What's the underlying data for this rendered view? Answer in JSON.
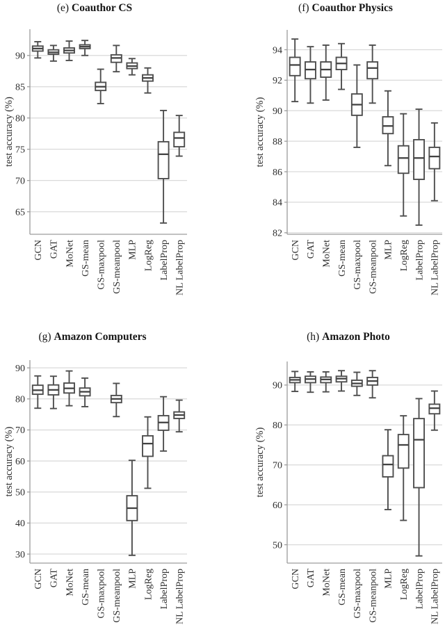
{
  "style": {
    "background": "#ffffff",
    "box_stroke": "#4e4e4e",
    "median_color": "#424242",
    "box_fill": "#ffffff",
    "grid_color": "#d9d9d9",
    "spine_color": "#9c9c9c",
    "text_color": "#2e2e2e",
    "title_color": "#161616"
  },
  "chart_data": [
    {
      "id": "e",
      "type": "boxplot",
      "title": "(e) Coauthor CS",
      "title_prefix": "(e)",
      "title_name": "Coauthor CS",
      "xlabel": "",
      "ylabel": "test accuracy (%)",
      "grid": true,
      "legend": false,
      "ylim": [
        61.4,
        94.2
      ],
      "yticks": [
        65,
        70,
        75,
        80,
        85,
        90
      ],
      "categories": [
        "GCN",
        "GAT",
        "MoNet",
        "GS-mean",
        "GS-maxpool",
        "GS-meanpool",
        "MLP",
        "LogReg",
        "LabelProp",
        "NL LabelProp"
      ],
      "boxes": [
        {
          "label": "GCN",
          "low": 89.6,
          "q1": 90.7,
          "median": 91.1,
          "q3": 91.5,
          "high": 92.2
        },
        {
          "label": "GAT",
          "low": 89.1,
          "q1": 90.2,
          "median": 90.5,
          "q3": 90.9,
          "high": 91.6
        },
        {
          "label": "MoNet",
          "low": 89.2,
          "q1": 90.4,
          "median": 90.8,
          "q3": 91.2,
          "high": 92.3
        },
        {
          "label": "GS-mean",
          "low": 90.0,
          "q1": 91.1,
          "median": 91.4,
          "q3": 91.7,
          "high": 92.4
        },
        {
          "label": "GS-maxpool",
          "low": 82.3,
          "q1": 84.4,
          "median": 85.0,
          "q3": 85.7,
          "high": 87.8
        },
        {
          "label": "GS-meanpool",
          "low": 87.4,
          "q1": 88.9,
          "median": 89.6,
          "q3": 90.1,
          "high": 91.6
        },
        {
          "label": "MLP",
          "low": 86.9,
          "q1": 87.9,
          "median": 88.3,
          "q3": 88.8,
          "high": 89.5
        },
        {
          "label": "LogReg",
          "low": 84.0,
          "q1": 85.9,
          "median": 86.4,
          "q3": 86.9,
          "high": 88.0
        },
        {
          "label": "LabelProp",
          "low": 63.2,
          "q1": 70.3,
          "median": 74.2,
          "q3": 76.2,
          "high": 81.2
        },
        {
          "label": "NL LabelProp",
          "low": 73.9,
          "q1": 75.4,
          "median": 76.8,
          "q3": 77.7,
          "high": 80.4
        }
      ]
    },
    {
      "id": "f",
      "type": "boxplot",
      "title": "(f) Coauthor Physics",
      "title_prefix": "(f)",
      "title_name": "Coauthor Physics",
      "xlabel": "",
      "ylabel": "test accuracy (%)",
      "grid": true,
      "legend": false,
      "ylim": [
        81.9,
        95.3
      ],
      "yticks": [
        82,
        84,
        86,
        88,
        90,
        92,
        94
      ],
      "categories": [
        "GCN",
        "GAT",
        "MoNet",
        "GS-mean",
        "GS-maxpool",
        "GS-meanpool",
        "MLP",
        "LogReg",
        "LabelProp",
        "NL LabelProp"
      ],
      "boxes": [
        {
          "label": "GCN",
          "low": 90.6,
          "q1": 92.3,
          "median": 93.0,
          "q3": 93.5,
          "high": 94.7
        },
        {
          "label": "GAT",
          "low": 90.5,
          "q1": 92.1,
          "median": 92.7,
          "q3": 93.2,
          "high": 94.2
        },
        {
          "label": "MoNet",
          "low": 90.7,
          "q1": 92.2,
          "median": 92.7,
          "q3": 93.2,
          "high": 94.3
        },
        {
          "label": "GS-mean",
          "low": 91.4,
          "q1": 92.7,
          "median": 93.1,
          "q3": 93.5,
          "high": 94.4
        },
        {
          "label": "GS-maxpool",
          "low": 87.6,
          "q1": 89.7,
          "median": 90.4,
          "q3": 91.1,
          "high": 93.0
        },
        {
          "label": "GS-meanpool",
          "low": 90.5,
          "q1": 92.1,
          "median": 92.8,
          "q3": 93.2,
          "high": 94.3
        },
        {
          "label": "MLP",
          "low": 86.4,
          "q1": 88.5,
          "median": 89.0,
          "q3": 89.6,
          "high": 91.3
        },
        {
          "label": "LogReg",
          "low": 83.1,
          "q1": 85.9,
          "median": 86.9,
          "q3": 87.7,
          "high": 89.8
        },
        {
          "label": "LabelProp",
          "low": 82.5,
          "q1": 85.5,
          "median": 86.9,
          "q3": 88.1,
          "high": 90.1
        },
        {
          "label": "NL LabelProp",
          "low": 84.1,
          "q1": 86.2,
          "median": 87.0,
          "q3": 87.6,
          "high": 89.2
        }
      ]
    },
    {
      "id": "g",
      "type": "boxplot",
      "title": "(g) Amazon Computers",
      "title_prefix": "(g)",
      "title_name": "Amazon Computers",
      "xlabel": "",
      "ylabel": "test accuracy (%)",
      "grid": true,
      "legend": false,
      "ylim": [
        27.1,
        92.5
      ],
      "yticks": [
        30,
        40,
        50,
        60,
        70,
        80,
        90
      ],
      "categories": [
        "GCN",
        "GAT",
        "MoNet",
        "GS-mean",
        "GS-maxpool",
        "GS-meanpool",
        "MLP",
        "LogReg",
        "LabelProp",
        "NL LabelProp"
      ],
      "boxes": [
        {
          "label": "GCN",
          "low": 77.0,
          "q1": 81.5,
          "median": 82.8,
          "q3": 84.4,
          "high": 87.4
        },
        {
          "label": "GAT",
          "low": 76.9,
          "q1": 81.3,
          "median": 82.9,
          "q3": 84.5,
          "high": 87.3
        },
        {
          "label": "MoNet",
          "low": 77.8,
          "q1": 81.9,
          "median": 83.4,
          "q3": 85.1,
          "high": 89.0
        },
        {
          "label": "GS-mean",
          "low": 77.5,
          "q1": 81.0,
          "median": 82.3,
          "q3": 83.5,
          "high": 86.7
        },
        null,
        {
          "label": "GS-meanpool",
          "low": 74.3,
          "q1": 78.8,
          "median": 80.0,
          "q3": 81.1,
          "high": 85.0
        },
        {
          "label": "MLP",
          "low": 29.6,
          "q1": 40.8,
          "median": 44.8,
          "q3": 48.8,
          "high": 60.2
        },
        {
          "label": "LogReg",
          "low": 51.2,
          "q1": 61.5,
          "median": 65.6,
          "q3": 68.1,
          "high": 74.2
        },
        {
          "label": "LabelProp",
          "low": 63.2,
          "q1": 69.9,
          "median": 72.4,
          "q3": 74.6,
          "high": 80.7
        },
        {
          "label": "NL LabelProp",
          "low": 69.4,
          "q1": 73.7,
          "median": 74.8,
          "q3": 75.8,
          "high": 79.6
        }
      ]
    },
    {
      "id": "h",
      "type": "boxplot",
      "title": "(h) Amazon Photo",
      "title_prefix": "(h)",
      "title_name": "Amazon Photo",
      "xlabel": "",
      "ylabel": "test accuracy (%)",
      "grid": true,
      "legend": false,
      "ylim": [
        45.4,
        95.9
      ],
      "yticks": [
        50,
        60,
        70,
        80,
        90
      ],
      "categories": [
        "GCN",
        "GAT",
        "MoNet",
        "GS-mean",
        "GS-maxpool",
        "GS-meanpool",
        "MLP",
        "LogReg",
        "LabelProp",
        "NL LabelProp"
      ],
      "boxes": [
        {
          "label": "GCN",
          "low": 88.4,
          "q1": 90.6,
          "median": 91.3,
          "q3": 91.9,
          "high": 93.4
        },
        {
          "label": "GAT",
          "low": 88.2,
          "q1": 90.6,
          "median": 91.5,
          "q3": 92.2,
          "high": 93.3
        },
        {
          "label": "MoNet",
          "low": 88.3,
          "q1": 90.6,
          "median": 91.4,
          "q3": 92.0,
          "high": 93.3
        },
        {
          "label": "GS-mean",
          "low": 88.5,
          "q1": 90.8,
          "median": 91.6,
          "q3": 92.2,
          "high": 93.6
        },
        {
          "label": "GS-maxpool",
          "low": 87.4,
          "q1": 89.7,
          "median": 90.4,
          "q3": 91.2,
          "high": 93.2
        },
        {
          "label": "GS-meanpool",
          "low": 86.8,
          "q1": 90.0,
          "median": 91.0,
          "q3": 91.9,
          "high": 93.6
        },
        {
          "label": "MLP",
          "low": 58.8,
          "q1": 67.0,
          "median": 70.1,
          "q3": 72.3,
          "high": 78.8
        },
        {
          "label": "LogReg",
          "low": 56.1,
          "q1": 69.2,
          "median": 75.0,
          "q3": 77.6,
          "high": 82.3
        },
        {
          "label": "LabelProp",
          "low": 47.2,
          "q1": 64.3,
          "median": 76.3,
          "q3": 81.6,
          "high": 86.6
        },
        {
          "label": "NL LabelProp",
          "low": 78.7,
          "q1": 82.8,
          "median": 84.2,
          "q3": 85.2,
          "high": 88.5
        }
      ]
    }
  ]
}
